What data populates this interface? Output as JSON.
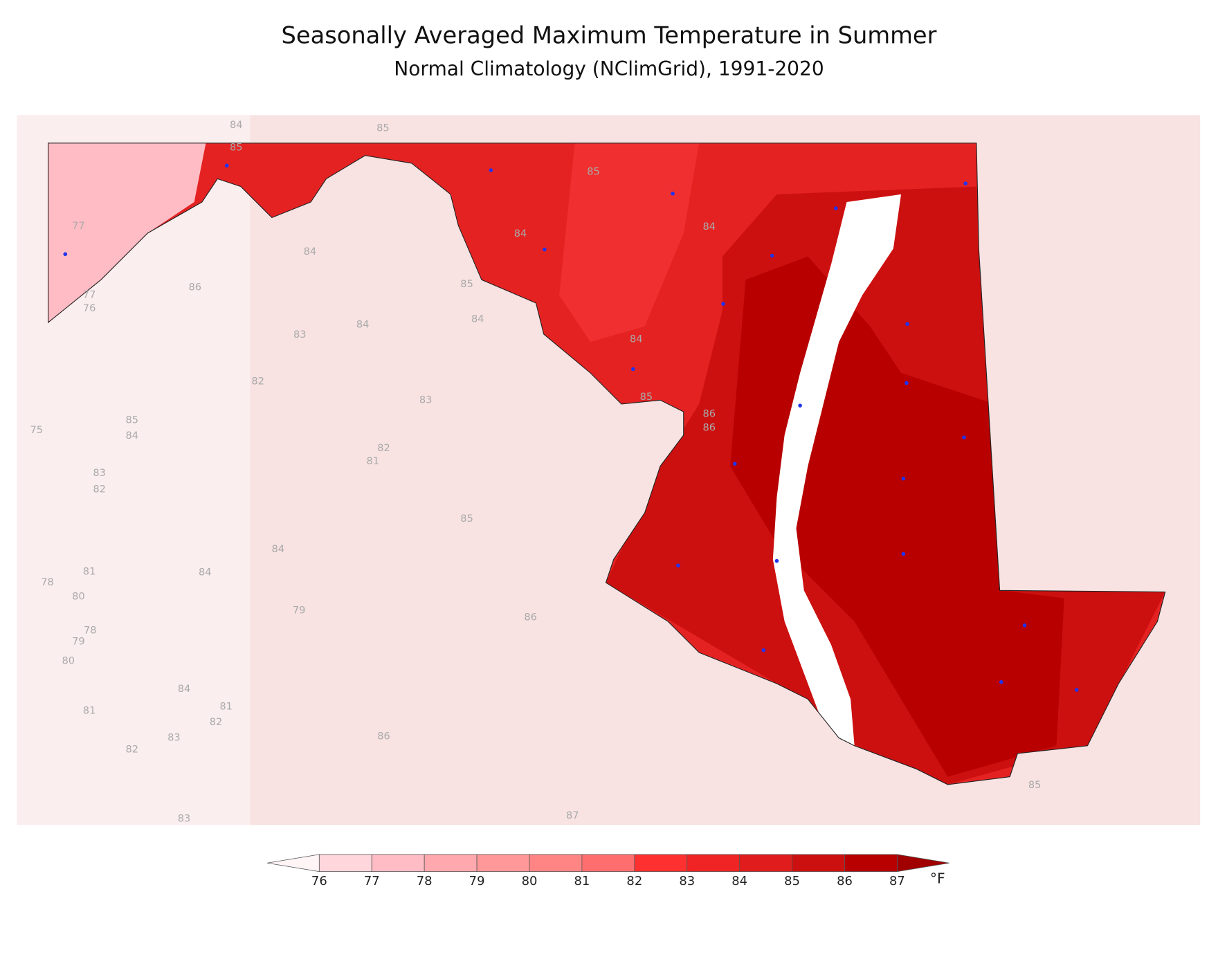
{
  "header": {
    "title": "Seasonally Averaged Maximum Temperature in Summer",
    "subtitle": "Normal Climatology (NClimGrid), 1991-2020"
  },
  "map": {
    "contour_labels": [
      84,
      85,
      85,
      85,
      84,
      84,
      77,
      84,
      86,
      85,
      77,
      76,
      84,
      84,
      83,
      84,
      82,
      83,
      85,
      86,
      86,
      85,
      84,
      75,
      82,
      81,
      83,
      82,
      85,
      84,
      81,
      84,
      78,
      80,
      79,
      86,
      78,
      79,
      80,
      84,
      81,
      81,
      82,
      83,
      86,
      82,
      85,
      87,
      83
    ]
  },
  "legend": {
    "levels": [
      76,
      77,
      78,
      79,
      80,
      81,
      82,
      83,
      84,
      85,
      86,
      87
    ],
    "colors": [
      "#ffd6dc",
      "#ffbcc4",
      "#ffa8ae",
      "#ff9898",
      "#ff8484",
      "#ff6e6e",
      "#ff3030",
      "#f02424",
      "#e01c1c",
      "#cc1010",
      "#b80000"
    ],
    "under_color": "#fff4f6",
    "over_color": "#a00000",
    "unit": "°F"
  }
}
